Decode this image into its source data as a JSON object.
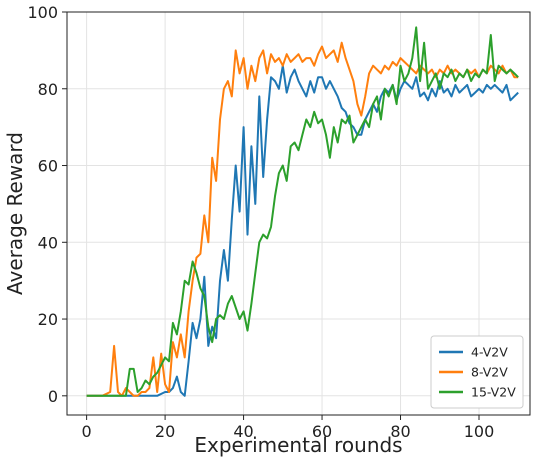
{
  "chart_data": {
    "type": "line",
    "title": "",
    "xlabel": "Experimental rounds",
    "ylabel": "Average Reward",
    "xlim": [
      -5,
      113
    ],
    "ylim": [
      -5,
      100
    ],
    "xticks": [
      0,
      20,
      40,
      60,
      80,
      100
    ],
    "yticks": [
      0,
      20,
      40,
      60,
      80,
      100
    ],
    "grid": true,
    "legend_position": "lower-right",
    "series": [
      {
        "name": "4-V2V",
        "color": "#1f77b4",
        "points": [
          [
            0,
            0
          ],
          [
            2,
            0
          ],
          [
            4,
            0
          ],
          [
            6,
            0
          ],
          [
            8,
            0
          ],
          [
            10,
            0
          ],
          [
            12,
            0
          ],
          [
            14,
            0
          ],
          [
            16,
            0
          ],
          [
            18,
            0
          ],
          [
            20,
            1
          ],
          [
            21,
            1
          ],
          [
            22,
            2
          ],
          [
            23,
            5
          ],
          [
            24,
            1
          ],
          [
            25,
            0
          ],
          [
            26,
            9
          ],
          [
            27,
            19
          ],
          [
            28,
            15
          ],
          [
            29,
            20
          ],
          [
            30,
            31
          ],
          [
            31,
            13
          ],
          [
            32,
            18
          ],
          [
            33,
            15
          ],
          [
            34,
            30
          ],
          [
            35,
            38
          ],
          [
            36,
            30
          ],
          [
            37,
            46
          ],
          [
            38,
            60
          ],
          [
            39,
            48
          ],
          [
            40,
            70
          ],
          [
            41,
            42
          ],
          [
            42,
            65
          ],
          [
            43,
            50
          ],
          [
            44,
            78
          ],
          [
            45,
            57
          ],
          [
            46,
            72
          ],
          [
            47,
            83
          ],
          [
            48,
            82
          ],
          [
            49,
            80
          ],
          [
            50,
            86
          ],
          [
            51,
            79
          ],
          [
            52,
            83
          ],
          [
            53,
            85
          ],
          [
            54,
            82
          ],
          [
            55,
            80
          ],
          [
            56,
            78
          ],
          [
            57,
            82
          ],
          [
            58,
            79
          ],
          [
            59,
            83
          ],
          [
            60,
            83
          ],
          [
            61,
            80
          ],
          [
            62,
            82
          ],
          [
            63,
            80
          ],
          [
            64,
            78
          ],
          [
            65,
            75
          ],
          [
            66,
            74
          ],
          [
            67,
            71
          ],
          [
            68,
            70
          ],
          [
            69,
            68
          ],
          [
            70,
            68
          ],
          [
            71,
            72
          ],
          [
            72,
            74
          ],
          [
            73,
            76
          ],
          [
            74,
            74
          ],
          [
            75,
            78
          ],
          [
            76,
            80
          ],
          [
            77,
            79
          ],
          [
            78,
            81
          ],
          [
            79,
            77
          ],
          [
            80,
            80
          ],
          [
            81,
            82
          ],
          [
            82,
            81
          ],
          [
            83,
            80
          ],
          [
            84,
            83
          ],
          [
            85,
            78
          ],
          [
            86,
            79
          ],
          [
            87,
            77
          ],
          [
            88,
            80
          ],
          [
            89,
            78
          ],
          [
            90,
            82
          ],
          [
            91,
            79
          ],
          [
            92,
            80
          ],
          [
            93,
            78
          ],
          [
            94,
            81
          ],
          [
            95,
            79
          ],
          [
            96,
            80
          ],
          [
            97,
            81
          ],
          [
            98,
            78
          ],
          [
            99,
            79
          ],
          [
            100,
            80
          ],
          [
            101,
            79
          ],
          [
            102,
            81
          ],
          [
            103,
            80
          ],
          [
            104,
            81
          ],
          [
            105,
            80
          ],
          [
            106,
            79
          ],
          [
            107,
            81
          ],
          [
            108,
            77
          ],
          [
            109,
            78
          ],
          [
            110,
            79
          ]
        ]
      },
      {
        "name": "8-V2V",
        "color": "#ff7f0e",
        "points": [
          [
            0,
            0
          ],
          [
            2,
            0
          ],
          [
            4,
            0
          ],
          [
            6,
            1
          ],
          [
            7,
            13
          ],
          [
            8,
            1
          ],
          [
            9,
            0
          ],
          [
            10,
            2
          ],
          [
            11,
            1
          ],
          [
            12,
            0
          ],
          [
            13,
            0
          ],
          [
            14,
            1
          ],
          [
            15,
            1
          ],
          [
            16,
            2
          ],
          [
            17,
            10
          ],
          [
            18,
            1
          ],
          [
            19,
            11
          ],
          [
            20,
            3
          ],
          [
            21,
            1
          ],
          [
            22,
            14
          ],
          [
            23,
            10
          ],
          [
            24,
            16
          ],
          [
            25,
            10
          ],
          [
            26,
            22
          ],
          [
            27,
            30
          ],
          [
            28,
            36
          ],
          [
            29,
            37
          ],
          [
            30,
            47
          ],
          [
            31,
            40
          ],
          [
            32,
            62
          ],
          [
            33,
            56
          ],
          [
            34,
            72
          ],
          [
            35,
            80
          ],
          [
            36,
            82
          ],
          [
            37,
            78
          ],
          [
            38,
            90
          ],
          [
            39,
            84
          ],
          [
            40,
            88
          ],
          [
            41,
            80
          ],
          [
            42,
            86
          ],
          [
            43,
            82
          ],
          [
            44,
            88
          ],
          [
            45,
            90
          ],
          [
            46,
            84
          ],
          [
            47,
            89
          ],
          [
            48,
            87
          ],
          [
            49,
            88
          ],
          [
            50,
            86
          ],
          [
            51,
            89
          ],
          [
            52,
            87
          ],
          [
            53,
            88
          ],
          [
            54,
            89
          ],
          [
            55,
            87
          ],
          [
            56,
            88
          ],
          [
            57,
            88
          ],
          [
            58,
            86
          ],
          [
            59,
            89
          ],
          [
            60,
            91
          ],
          [
            61,
            88
          ],
          [
            62,
            89
          ],
          [
            63,
            90
          ],
          [
            64,
            87
          ],
          [
            65,
            92
          ],
          [
            66,
            88
          ],
          [
            67,
            85
          ],
          [
            68,
            82
          ],
          [
            69,
            76
          ],
          [
            70,
            73
          ],
          [
            71,
            78
          ],
          [
            72,
            84
          ],
          [
            73,
            86
          ],
          [
            74,
            85
          ],
          [
            75,
            84
          ],
          [
            76,
            86
          ],
          [
            77,
            85
          ],
          [
            78,
            87
          ],
          [
            79,
            86
          ],
          [
            80,
            88
          ],
          [
            81,
            87
          ],
          [
            82,
            86
          ],
          [
            83,
            85
          ],
          [
            84,
            84
          ],
          [
            85,
            86
          ],
          [
            86,
            85
          ],
          [
            87,
            84
          ],
          [
            88,
            85
          ],
          [
            89,
            83
          ],
          [
            90,
            85
          ],
          [
            91,
            84
          ],
          [
            92,
            86
          ],
          [
            93,
            84
          ],
          [
            94,
            85
          ],
          [
            95,
            84
          ],
          [
            96,
            83
          ],
          [
            97,
            85
          ],
          [
            98,
            84
          ],
          [
            99,
            85
          ],
          [
            100,
            83
          ],
          [
            101,
            85
          ],
          [
            102,
            84
          ],
          [
            103,
            86
          ],
          [
            104,
            85
          ],
          [
            105,
            84
          ],
          [
            106,
            86
          ],
          [
            107,
            84
          ],
          [
            108,
            85
          ],
          [
            109,
            83
          ],
          [
            110,
            83
          ]
        ]
      },
      {
        "name": "15-V2V",
        "color": "#2ca02c",
        "points": [
          [
            0,
            0
          ],
          [
            2,
            0
          ],
          [
            4,
            0
          ],
          [
            6,
            0
          ],
          [
            8,
            0
          ],
          [
            10,
            0
          ],
          [
            11,
            7
          ],
          [
            12,
            7
          ],
          [
            13,
            1
          ],
          [
            14,
            2
          ],
          [
            15,
            4
          ],
          [
            16,
            3
          ],
          [
            17,
            5
          ],
          [
            18,
            6
          ],
          [
            19,
            8
          ],
          [
            20,
            10
          ],
          [
            21,
            9
          ],
          [
            22,
            19
          ],
          [
            23,
            16
          ],
          [
            24,
            22
          ],
          [
            25,
            30
          ],
          [
            26,
            29
          ],
          [
            27,
            35
          ],
          [
            28,
            32
          ],
          [
            29,
            28
          ],
          [
            30,
            26
          ],
          [
            31,
            18
          ],
          [
            32,
            14
          ],
          [
            33,
            20
          ],
          [
            34,
            21
          ],
          [
            35,
            20
          ],
          [
            36,
            24
          ],
          [
            37,
            26
          ],
          [
            38,
            23
          ],
          [
            39,
            20
          ],
          [
            40,
            22
          ],
          [
            41,
            17
          ],
          [
            42,
            24
          ],
          [
            43,
            32
          ],
          [
            44,
            40
          ],
          [
            45,
            42
          ],
          [
            46,
            41
          ],
          [
            47,
            44
          ],
          [
            48,
            52
          ],
          [
            49,
            58
          ],
          [
            50,
            60
          ],
          [
            51,
            56
          ],
          [
            52,
            65
          ],
          [
            53,
            66
          ],
          [
            54,
            64
          ],
          [
            55,
            68
          ],
          [
            56,
            72
          ],
          [
            57,
            70
          ],
          [
            58,
            74
          ],
          [
            59,
            71
          ],
          [
            60,
            72
          ],
          [
            61,
            68
          ],
          [
            62,
            62
          ],
          [
            63,
            70
          ],
          [
            64,
            66
          ],
          [
            65,
            72
          ],
          [
            66,
            71
          ],
          [
            67,
            73
          ],
          [
            68,
            66
          ],
          [
            69,
            68
          ],
          [
            70,
            70
          ],
          [
            71,
            72
          ],
          [
            72,
            70
          ],
          [
            73,
            76
          ],
          [
            74,
            78
          ],
          [
            75,
            72
          ],
          [
            76,
            80
          ],
          [
            77,
            78
          ],
          [
            78,
            81
          ],
          [
            79,
            76
          ],
          [
            80,
            86
          ],
          [
            81,
            82
          ],
          [
            82,
            84
          ],
          [
            83,
            88
          ],
          [
            84,
            96
          ],
          [
            85,
            82
          ],
          [
            86,
            92
          ],
          [
            87,
            80
          ],
          [
            88,
            82
          ],
          [
            89,
            84
          ],
          [
            90,
            80
          ],
          [
            91,
            84
          ],
          [
            92,
            83
          ],
          [
            93,
            85
          ],
          [
            94,
            82
          ],
          [
            95,
            84
          ],
          [
            96,
            83
          ],
          [
            97,
            85
          ],
          [
            98,
            82
          ],
          [
            99,
            84
          ],
          [
            100,
            83
          ],
          [
            101,
            85
          ],
          [
            102,
            84
          ],
          [
            103,
            94
          ],
          [
            104,
            82
          ],
          [
            105,
            86
          ],
          [
            106,
            85
          ],
          [
            107,
            84
          ],
          [
            108,
            85
          ],
          [
            109,
            84
          ],
          [
            110,
            83
          ]
        ]
      }
    ]
  }
}
